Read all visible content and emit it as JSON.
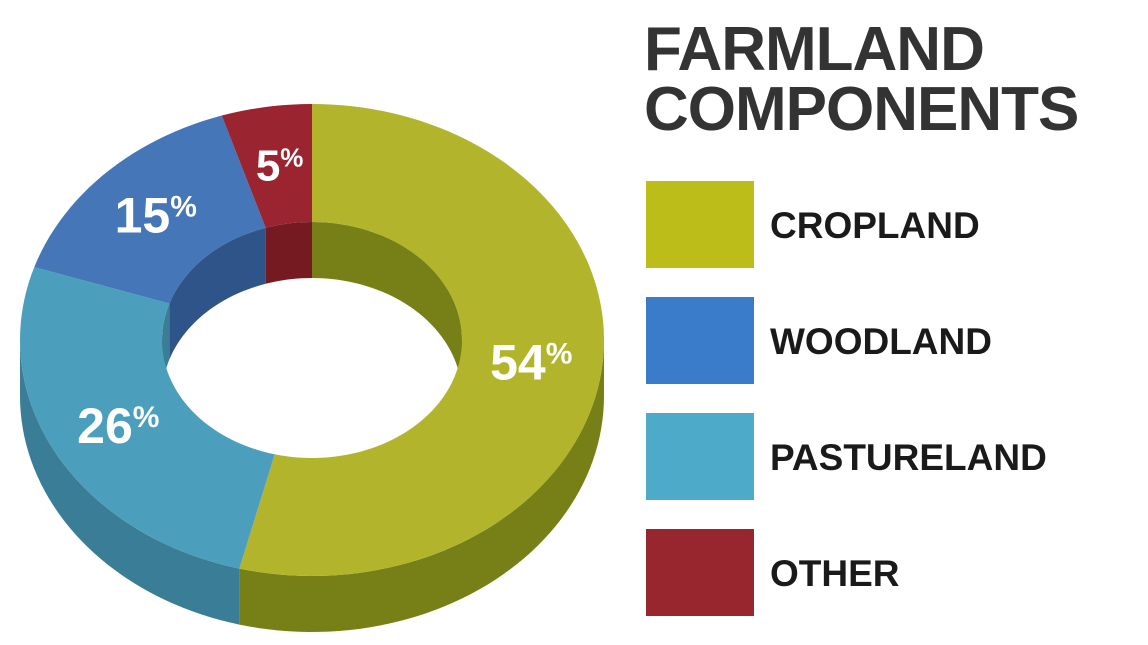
{
  "title_lines": [
    "FARMLAND",
    "COMPONENTS"
  ],
  "chart_data": {
    "type": "pie",
    "title": "FARMLAND COMPONENTS",
    "categories": [
      "CROPLAND",
      "WOODLAND",
      "PASTURELAND",
      "OTHER"
    ],
    "values": [
      54,
      15,
      26,
      5
    ],
    "value_labels": [
      "54",
      "15",
      "26",
      "5"
    ],
    "unit": "%",
    "slice_order_clockwise_from_top": [
      "CROPLAND",
      "PASTURELAND",
      "WOODLAND",
      "OTHER"
    ],
    "colors": {
      "CROPLAND": {
        "top": "#b2b52b",
        "side": "#768017",
        "legend": "#bdbd19"
      },
      "WOODLAND": {
        "top": "#4576b8",
        "side": "#2e5489",
        "legend": "#3b7cca"
      },
      "PASTURELAND": {
        "top": "#4b9fbd",
        "side": "#3a7d96",
        "legend": "#4eaac9"
      },
      "OTHER": {
        "top": "#9a2530",
        "side": "#761a22",
        "legend": "#98262f"
      }
    },
    "style": "3d-donut",
    "legend_position": "right"
  },
  "legend": [
    {
      "label": "CROPLAND",
      "color": "#bdbd19"
    },
    {
      "label": "WOODLAND",
      "color": "#3b7cca"
    },
    {
      "label": "PASTURELAND",
      "color": "#4eaac9"
    },
    {
      "label": "OTHER",
      "color": "#98262f"
    }
  ]
}
